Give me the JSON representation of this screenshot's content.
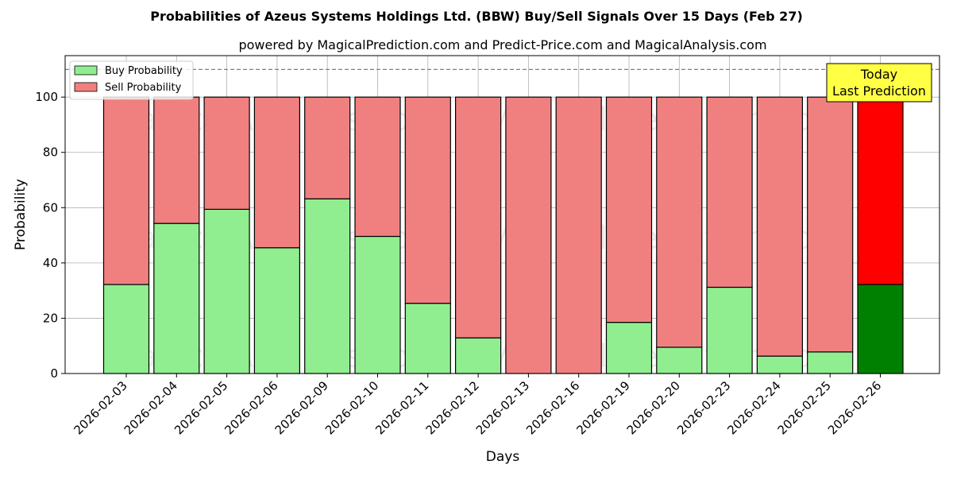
{
  "chart_data": {
    "type": "bar",
    "stacked": true,
    "title": "Probabilities of Azeus Systems Holdings Ltd. (BBW) Buy/Sell Signals Over 15 Days (Feb 27)",
    "subtitle": "powered by MagicalPrediction.com and Predict-Price.com and MagicalAnalysis.com",
    "xlabel": "Days",
    "ylabel": "Probability",
    "ylim": [
      0,
      115
    ],
    "yticks": [
      0,
      20,
      40,
      60,
      80,
      100
    ],
    "grid": true,
    "legend_placement": "top-left",
    "reference_line": 110,
    "categories": [
      "2026-02-03",
      "2026-02-04",
      "2026-02-05",
      "2026-02-06",
      "2026-02-09",
      "2026-02-10",
      "2026-02-11",
      "2026-02-12",
      "2026-02-13",
      "2026-02-16",
      "2026-02-19",
      "2026-02-20",
      "2026-02-23",
      "2026-02-24",
      "2026-02-25",
      "2026-02-26"
    ],
    "series": [
      {
        "name": "Buy Probability",
        "color": "#90ee90",
        "highlight_color": "#008000",
        "values": [
          32.2,
          54.3,
          59.4,
          45.5,
          63.2,
          49.6,
          25.4,
          12.9,
          0,
          0,
          18.5,
          9.5,
          31.2,
          6.3,
          7.8,
          32.2
        ]
      },
      {
        "name": "Sell Probability",
        "color": "#f08080",
        "highlight_color": "#ff0000",
        "values": [
          67.8,
          45.7,
          40.6,
          54.5,
          36.8,
          50.4,
          74.6,
          87.1,
          100,
          100,
          81.5,
          90.5,
          68.8,
          93.7,
          92.2,
          67.8
        ]
      }
    ],
    "highlight_index": 15,
    "annotation": {
      "lines": [
        "Today",
        "Last Prediction"
      ],
      "background": "#ffff44"
    },
    "watermark": [
      "MagicalAnalysis.com",
      "MagicalPrediction.com"
    ]
  }
}
